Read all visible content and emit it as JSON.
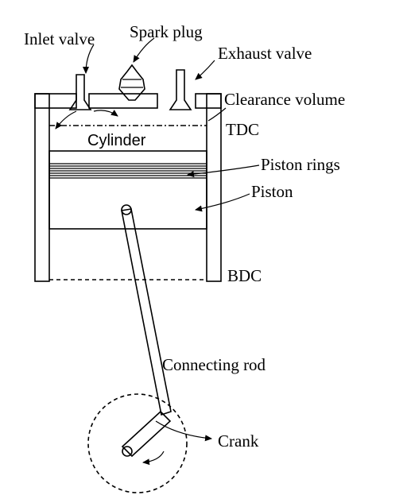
{
  "labels": {
    "inlet_valve": "Inlet valve",
    "spark_plug": "Spark plug",
    "exhaust_valve": "Exhaust valve",
    "clearance_volume": "Clearance volume",
    "tdc": "TDC",
    "cylinder": "Cylinder",
    "piston_rings": "Piston rings",
    "piston": "Piston",
    "bdc": "BDC",
    "connecting_rod": "Connecting rod",
    "crank": "Crank"
  }
}
